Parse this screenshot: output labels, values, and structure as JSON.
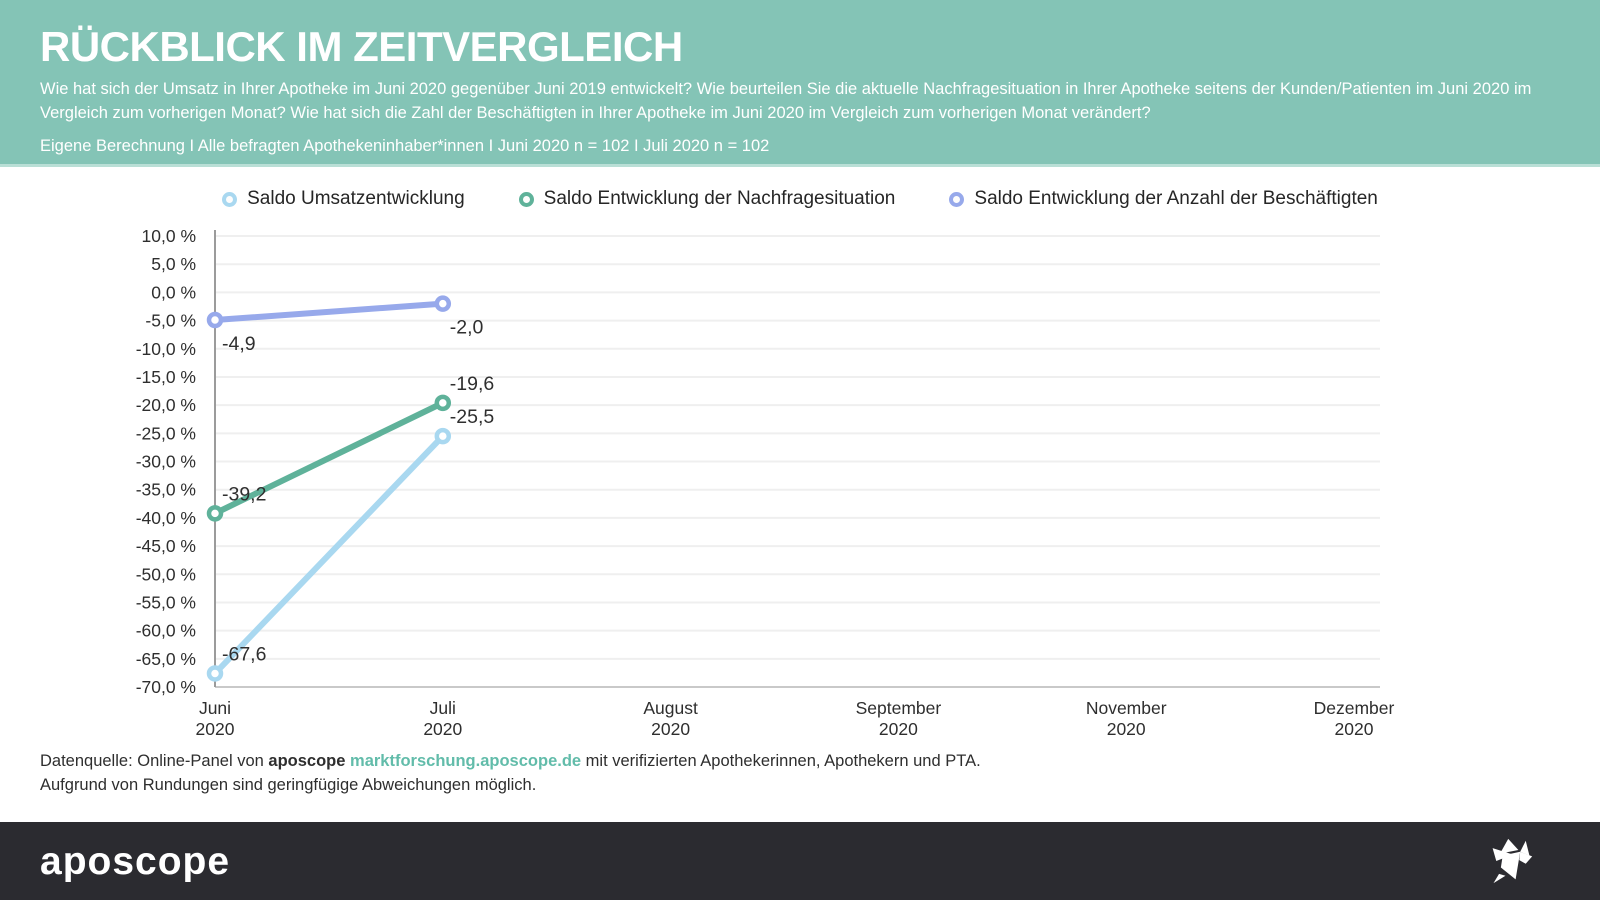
{
  "header": {
    "title": "RÜCKBLICK IM ZEITVERGLEICH",
    "subtitle": "Wie hat sich der Umsatz in Ihrer Apotheke im Juni 2020 gegenüber Juni 2019 entwickelt? Wie beurteilen Sie die aktuelle Nachfragesituation in Ihrer Apotheke seitens der Kunden/Patienten im Juni 2020 im Vergleich zum vorherigen Monat? Wie hat sich die Zahl der Beschäftigten in Ihrer Apotheke im Juni 2020 im Vergleich zum vorherigen Monat verändert?",
    "note": "Eigene Berechnung I Alle befragten Apothekeninhaber*innen I Juni 2020 n = 102 I Juli 2020 n = 102"
  },
  "colors": {
    "header_bg": "#84C4B6",
    "header_border": "#B9DFD6",
    "bar_bg": "#2B2B30",
    "link": "#62BCAA",
    "grid": "#EFEFEF",
    "baseline": "#C9C9C9",
    "axis": "#9B9B9B",
    "text": "#2E2E2E",
    "label": "#2F2F2F",
    "white": "#FFFFFF"
  },
  "chart_data": {
    "type": "line",
    "categories": [
      {
        "month": "Juni",
        "year": "2020"
      },
      {
        "month": "Juli",
        "year": "2020"
      },
      {
        "month": "August",
        "year": "2020"
      },
      {
        "month": "September",
        "year": "2020"
      },
      {
        "month": "November",
        "year": "2020"
      },
      {
        "month": "Dezember",
        "year": "2020"
      }
    ],
    "ylim": [
      -70,
      10
    ],
    "y_step": 5,
    "y_ticks": [
      {
        "value": 10,
        "label": "10,0 %"
      },
      {
        "value": 5,
        "label": "5,0 %"
      },
      {
        "value": 0,
        "label": "0,0 %"
      },
      {
        "value": -5,
        "label": "-5,0 %"
      },
      {
        "value": -10,
        "label": "-10,0 %"
      },
      {
        "value": -15,
        "label": "-15,0 %"
      },
      {
        "value": -20,
        "label": "-20,0 %"
      },
      {
        "value": -25,
        "label": "-25,0 %"
      },
      {
        "value": -30,
        "label": "-30,0 %"
      },
      {
        "value": -35,
        "label": "-35,0 %"
      },
      {
        "value": -40,
        "label": "-40,0 %"
      },
      {
        "value": -45,
        "label": "-45,0 %"
      },
      {
        "value": -50,
        "label": "-50,0 %"
      },
      {
        "value": -55,
        "label": "-55,0 %"
      },
      {
        "value": -60,
        "label": "-60,0 %"
      },
      {
        "value": -65,
        "label": "-65,0 %"
      },
      {
        "value": -70,
        "label": "-70,0 %"
      }
    ],
    "grid": "horizontal",
    "legend_position": "top-center",
    "series": [
      {
        "name": "Saldo Umsatzentwicklung",
        "color": "#A9D8F0",
        "values": [
          -67.6,
          -25.5,
          null,
          null,
          null,
          null
        ],
        "point_labels": [
          "-67,6",
          "-25,5",
          null,
          null,
          null,
          null
        ],
        "label_position": "above"
      },
      {
        "name": "Saldo Entwicklung der Nachfragesituation",
        "color": "#5FB29A",
        "values": [
          -39.2,
          -19.6,
          null,
          null,
          null,
          null
        ],
        "point_labels": [
          "-39,2",
          "-19,6",
          null,
          null,
          null,
          null
        ],
        "label_position": "above"
      },
      {
        "name": "Saldo Entwicklung der Anzahl der Beschäftigten",
        "color": "#97A9EB",
        "values": [
          -4.9,
          -2.0,
          null,
          null,
          null,
          null
        ],
        "point_labels": [
          "-4,9",
          "-2,0",
          null,
          null,
          null,
          null
        ],
        "label_position": "below"
      }
    ]
  },
  "footer": {
    "prefix": "Datenquelle: Online-Panel von ",
    "brand": "aposcope",
    "link": "marktforschung.aposcope.de",
    "suffix": " mit verifizierten Apothekerinnen, Apothekern und PTA.",
    "line2": "Aufgrund von Rundungen sind geringfügige Abweichungen möglich."
  },
  "brandbar": {
    "logo_text": "aposcope",
    "bird_icon": "origami-bird-icon"
  }
}
